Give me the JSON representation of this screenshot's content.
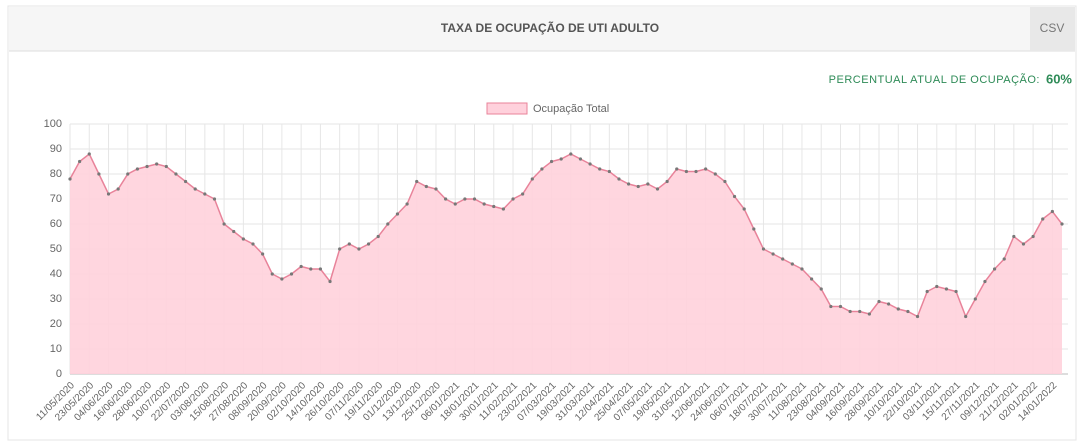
{
  "header": {
    "title": "TAXA DE OCUPAÇÃO DE UTI ADULTO",
    "button": "CSV",
    "current_label": "PERCENTUAL ATUAL DE OCUPAÇÃO:",
    "current_value": "60%"
  },
  "chart_data": {
    "type": "area",
    "categories": [
      "11/05/2020",
      null,
      "23/05/2020",
      null,
      "04/06/2020",
      null,
      "16/06/2020",
      null,
      "28/06/2020",
      null,
      "10/07/2020",
      null,
      "22/07/2020",
      null,
      "03/08/2020",
      null,
      "15/08/2020",
      null,
      "27/08/2020",
      null,
      "08/09/2020",
      null,
      "20/09/2020",
      null,
      "02/10/2020",
      null,
      "14/10/2020",
      null,
      "26/10/2020",
      null,
      "07/11/2020",
      null,
      "19/11/2020",
      null,
      "01/12/2020",
      null,
      "13/12/2020",
      null,
      "25/12/2020",
      null,
      "06/01/2021",
      null,
      "18/01/2021",
      null,
      "30/01/2021",
      null,
      "11/02/2021",
      null,
      "23/02/2021",
      null,
      "07/03/2021",
      null,
      "19/03/2021",
      null,
      "31/03/2021",
      null,
      "12/04/2021",
      null,
      "25/04/2021",
      null,
      "07/05/2021",
      null,
      "19/05/2021",
      null,
      "31/05/2021",
      null,
      "12/06/2021",
      null,
      "24/06/2021",
      null,
      "06/07/2021",
      null,
      "18/07/2021",
      null,
      "30/07/2021",
      null,
      "11/08/2021",
      null,
      "23/08/2021",
      null,
      "04/09/2021",
      null,
      "16/09/2021",
      null,
      "28/09/2021",
      null,
      "10/10/2021",
      null,
      "22/10/2021",
      null,
      "03/11/2021",
      null,
      "15/11/2021",
      null,
      "27/11/2021",
      null,
      "09/12/2021",
      null,
      "21/12/2021",
      null,
      "02/01/2022",
      null,
      "14/01/2022",
      null
    ],
    "series": [
      {
        "name": "Ocupação Total",
        "color": "#ffd1dc",
        "line_color": "#e8839a",
        "marker_color": "#777777",
        "values": [
          78,
          85,
          88,
          80,
          72,
          74,
          80,
          82,
          83,
          84,
          83,
          80,
          77,
          74,
          72,
          70,
          60,
          57,
          54,
          52,
          48,
          40,
          38,
          40,
          43,
          42,
          42,
          37,
          50,
          52,
          50,
          52,
          55,
          60,
          64,
          68,
          77,
          75,
          74,
          70,
          68,
          70,
          70,
          68,
          67,
          66,
          70,
          72,
          78,
          82,
          85,
          86,
          88,
          86,
          84,
          82,
          81,
          78,
          76,
          75,
          76,
          74,
          77,
          82,
          81,
          81,
          82,
          80,
          77,
          71,
          66,
          58,
          50,
          48,
          46,
          44,
          42,
          38,
          34,
          27,
          27,
          25,
          25,
          24,
          29,
          28,
          26,
          25,
          23,
          33,
          35,
          34,
          33,
          23,
          30,
          37,
          42,
          46,
          55,
          52,
          55,
          62,
          65,
          60
        ]
      }
    ],
    "ylim": [
      0,
      100
    ],
    "yticks": [
      0,
      10,
      20,
      30,
      40,
      50,
      60,
      70,
      80,
      90,
      100
    ],
    "grid": true,
    "legend": "top"
  }
}
